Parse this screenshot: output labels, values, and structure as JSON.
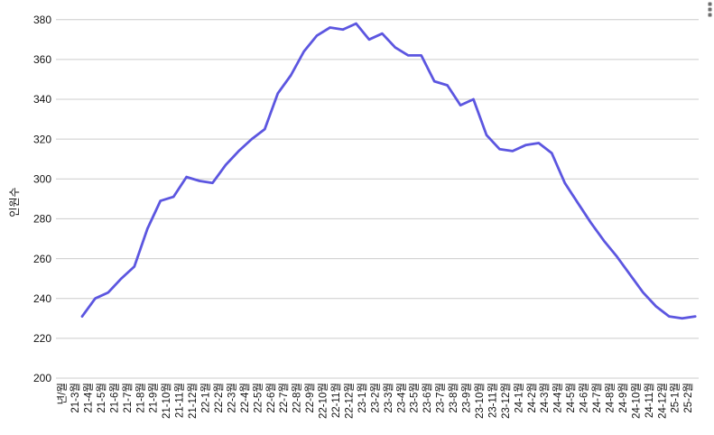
{
  "chart": {
    "menu_icon": "kebab-menu-icon",
    "background_color": "#ffffff",
    "gridline_color": "#cccccc",
    "axis_text_color": "#111111"
  },
  "chart_data": {
    "type": "line",
    "title": "",
    "xlabel": "년/월",
    "ylabel": "인원수",
    "ylim": [
      200,
      380
    ],
    "y_ticks": [
      200,
      220,
      240,
      260,
      280,
      300,
      320,
      340,
      360,
      380
    ],
    "grid": true,
    "legend_position": "none",
    "line_color": "#5c56e0",
    "categories": [
      "21-3월",
      "21-4월",
      "21-5월",
      "21-6월",
      "21-7월",
      "21-8월",
      "21-9월",
      "21-10월",
      "21-11월",
      "21-12월",
      "22-1월",
      "22-2월",
      "22-3월",
      "22-4월",
      "22-5월",
      "22-6월",
      "22-7월",
      "22-8월",
      "22-9월",
      "22-10월",
      "22-11월",
      "22-12월",
      "23-1월",
      "23-2월",
      "23-3월",
      "23-4월",
      "23-5월",
      "23-6월",
      "23-7월",
      "23-8월",
      "23-9월",
      "23-10월",
      "23-11월",
      "23-12월",
      "24-1월",
      "24-2월",
      "24-3월",
      "24-4월",
      "24-5월",
      "24-6월",
      "24-7월",
      "24-8월",
      "24-9월",
      "24-10월",
      "24-11월",
      "24-12월",
      "25-1월",
      "25-2월"
    ],
    "values": [
      231,
      240,
      243,
      250,
      256,
      275,
      289,
      291,
      301,
      299,
      298,
      307,
      314,
      320,
      325,
      343,
      352,
      364,
      372,
      376,
      375,
      378,
      370,
      373,
      366,
      362,
      362,
      349,
      347,
      337,
      340,
      322,
      315,
      314,
      317,
      318,
      313,
      298,
      288,
      278,
      269,
      261,
      252,
      243,
      236,
      231,
      230,
      231
    ]
  }
}
